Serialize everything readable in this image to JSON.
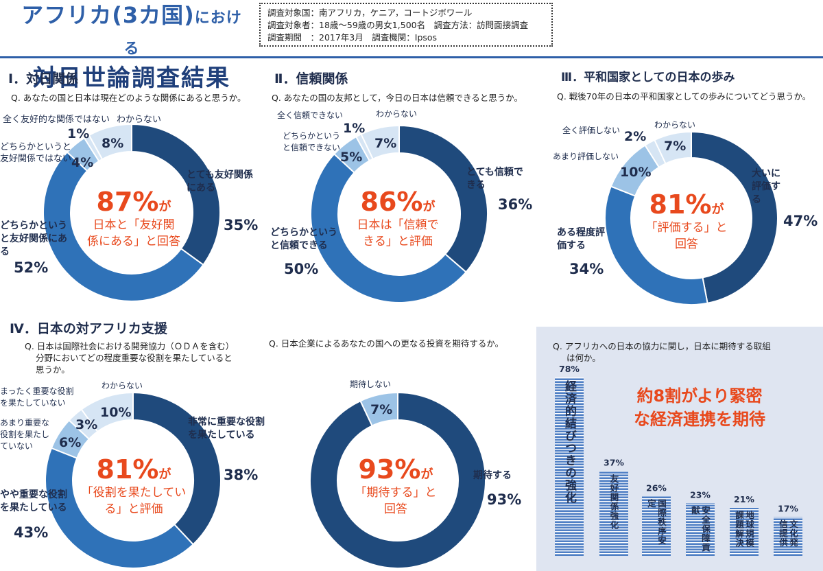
{
  "header": {
    "title_line1_a": "アフリカ(",
    "title_line1_b": "3カ国",
    "title_line1_c": ")",
    "title_line1_d": "における",
    "title_line2": "対日世論調査結果",
    "survey_lines": [
      "調査対象国：南アフリカ，ケニア，コートジボワール",
      "調査対象者：18歳～59歳の男女1,500名　調査方法：訪問面接調査",
      "調査期間　：2017年3月　調査機関：Ipsos"
    ]
  },
  "colors": {
    "dark": "#1f4a7c",
    "mid": "#2f72b8",
    "light": "#9cc3e6",
    "pale": "#d6e5f4",
    "accent": "#e8491d"
  },
  "sections": {
    "s1": {
      "title": "Ⅰ．対日関係",
      "question": "Q. あなたの国と日本は現在どのような関係にあると思うか。",
      "center_pct": "87%",
      "center_ga": "が",
      "center_l1": "日本と「友好関",
      "center_l2": "係にある」と回答"
    },
    "s2": {
      "title": "Ⅱ．信頼関係",
      "question": "Q. あなたの国の友邦として，今日の日本は信頼できると思うか。",
      "center_pct": "86%",
      "center_ga": "が",
      "center_l1": "日本は「信頼で",
      "center_l2": "きる」と評価"
    },
    "s3": {
      "title": "Ⅲ．平和国家としての日本の歩み",
      "question": "Q. 戦後70年の日本の平和国家としての歩みについてどう思うか。",
      "center_pct": "81%",
      "center_ga": "が",
      "center_l1": "「評価する」と",
      "center_l2": "回答"
    },
    "s4": {
      "title": "Ⅳ．日本の対アフリカ支援",
      "question_l1": "Q. 日本は国際社会における開発協力（ＯＤＡを含む）",
      "question_l2": "分野においてどの程度重要な役割を果たしていると",
      "question_l3": "思うか。",
      "center_pct": "81%",
      "center_ga": "が",
      "center_l1": "「役割を果たしてい",
      "center_l2": "る」と評価"
    },
    "s5": {
      "question": "Q. 日本企業によるあなたの国への更なる投資を期待するか。",
      "center_pct": "93%",
      "center_ga": "が",
      "center_l1": "「期待する」と",
      "center_l2": "回答"
    },
    "s6": {
      "question_l1": "Q. アフリカへの日本の協力に関し，日本に期待する取組",
      "question_l2": "は何か。",
      "headline_l1": "約8割がより緊密",
      "headline_l2": "な経済連携を期待"
    }
  },
  "chart_data": [
    {
      "type": "pie",
      "title": "Ⅰ．対日関係",
      "categories": [
        "とても友好関係にある",
        "どちらかというと友好関係にある",
        "どちらかというと友好関係ではない",
        "全く友好的な関係ではない",
        "わからない"
      ],
      "values": [
        35,
        52,
        4,
        1,
        8
      ]
    },
    {
      "type": "pie",
      "title": "Ⅱ．信頼関係",
      "categories": [
        "とても信頼できる",
        "どちらかというと信頼できる",
        "どちらかというと信頼できない",
        "全く信頼できない",
        "わからない"
      ],
      "values": [
        36,
        50,
        5,
        1,
        7
      ]
    },
    {
      "type": "pie",
      "title": "Ⅲ．平和国家としての日本の歩み",
      "categories": [
        "大いに評価する",
        "ある程度評価する",
        "あまり評価しない",
        "全く評価しない",
        "わからない"
      ],
      "values": [
        47,
        34,
        10,
        2,
        7
      ]
    },
    {
      "type": "pie",
      "title": "Ⅳ．日本の対アフリカ支援",
      "categories": [
        "非常に重要な役割を果たしている",
        "やや重要な役割を果たしている",
        "あまり重要な役割を果たしていない",
        "まったく重要な役割を果たしていない",
        "わからない"
      ],
      "values": [
        38,
        43,
        6,
        3,
        10
      ]
    },
    {
      "type": "pie",
      "categories": [
        "期待する",
        "期待しない"
      ],
      "values": [
        93,
        7
      ]
    },
    {
      "type": "bar",
      "categories": [
        "経済的結びつきの強化",
        "友好関係強化",
        "国際秩序安定",
        "安全保障貢献",
        "地球規模課題解決",
        "文化発信提供"
      ],
      "values": [
        78,
        37,
        26,
        23,
        21,
        17
      ]
    }
  ]
}
